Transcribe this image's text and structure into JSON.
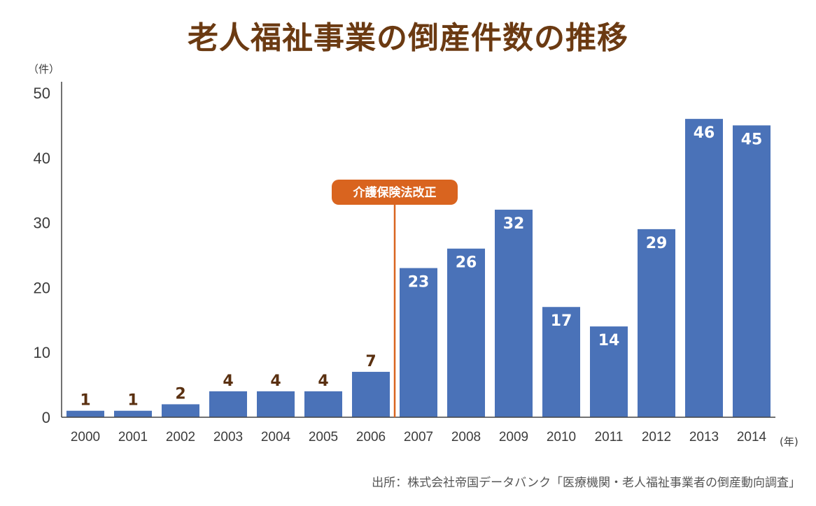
{
  "title": "老人福祉事業の倒産件数の推移",
  "source": "出所：株式会社帝国データバンク「医療機関・老人福祉事業者の倒産動向調査」",
  "colors": {
    "bar": "#4a72b8",
    "title": "#6b3a12",
    "annotation": "#d9641f"
  },
  "chart_data": {
    "type": "bar",
    "title": "老人福祉事業の倒産件数の推移",
    "categories": [
      "2000",
      "2001",
      "2002",
      "2003",
      "2004",
      "2005",
      "2006",
      "2007",
      "2008",
      "2009",
      "2010",
      "2011",
      "2012",
      "2013",
      "2014"
    ],
    "values": [
      1,
      1,
      2,
      4,
      4,
      4,
      7,
      23,
      26,
      32,
      17,
      14,
      29,
      46,
      45
    ],
    "y_unit": "（件）",
    "x_unit": "(年)",
    "ylim": [
      0,
      50
    ],
    "yticks": [
      0,
      10,
      20,
      30,
      40,
      50
    ],
    "grid": false,
    "annotation": {
      "label": "介護保険法改正",
      "between": [
        "2006",
        "2007"
      ]
    }
  }
}
